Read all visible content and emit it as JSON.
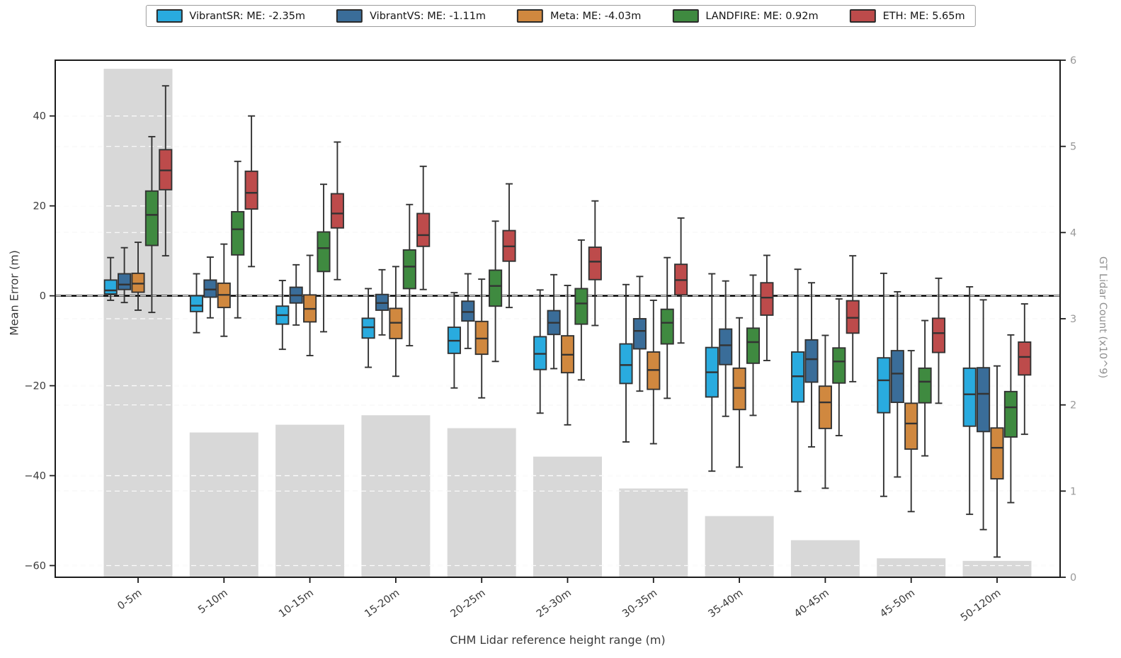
{
  "chart_data": {
    "type": "boxplot+bar",
    "title": "",
    "xlabel": "CHM Lidar reference height range (m)",
    "ylabel_left": "Mean Error (m)",
    "ylabel_right": "GT Lidar Count (x10^9)",
    "categories": [
      "0-5m",
      "5-10m",
      "10-15m",
      "15-20m",
      "20-25m",
      "25-30m",
      "30-35m",
      "35-40m",
      "40-45m",
      "45-50m",
      "50-120m"
    ],
    "ylim_left": [
      -62.6,
      52.4
    ],
    "yticks_left": [
      -60,
      -40,
      -20,
      0,
      20,
      40
    ],
    "ylim_right": [
      0,
      6
    ],
    "yticks_right": [
      0,
      1,
      2,
      3,
      4,
      5,
      6
    ],
    "grid": "dashed, both axes",
    "legend_position": "top-center",
    "zero_line": 0,
    "series": [
      {
        "name": "VibrantSR",
        "legend_label": "VibrantSR: ME: -2.35m",
        "color": "#29abdf",
        "boxes": [
          [
            -1.0,
            0.4,
            1.2,
            3.5,
            8.5
          ],
          [
            -8.2,
            -3.5,
            -2.2,
            0.0,
            4.9
          ],
          [
            -11.9,
            -6.3,
            -4.3,
            -2.3,
            3.4
          ],
          [
            -15.9,
            -9.4,
            -7.0,
            -5.0,
            1.6
          ],
          [
            -20.5,
            -12.8,
            -10.0,
            -7.0,
            0.7
          ],
          [
            -26.1,
            -16.4,
            -12.9,
            -9.1,
            1.3
          ],
          [
            -32.5,
            -19.5,
            -15.4,
            -10.7,
            2.5
          ],
          [
            -39.0,
            -22.5,
            -17.0,
            -11.5,
            4.9
          ],
          [
            -43.5,
            -23.6,
            -17.9,
            -12.5,
            5.9
          ],
          [
            -44.6,
            -26.0,
            -18.8,
            -13.8,
            5.0
          ],
          [
            -48.6,
            -29.0,
            -21.9,
            -16.1,
            2.0
          ]
        ]
      },
      {
        "name": "VibrantVS",
        "legend_label": "VibrantVS: ME: -1.11m",
        "color": "#3a6d99",
        "boxes": [
          [
            -1.5,
            1.4,
            2.5,
            4.9,
            10.7
          ],
          [
            -4.9,
            -0.3,
            1.4,
            3.5,
            8.6
          ],
          [
            -6.5,
            -1.6,
            0.1,
            1.9,
            6.9
          ],
          [
            -8.7,
            -3.2,
            -1.6,
            0.3,
            5.8
          ],
          [
            -11.7,
            -5.6,
            -3.6,
            -1.2,
            4.9
          ],
          [
            -16.2,
            -8.6,
            -6.0,
            -3.3,
            4.7
          ],
          [
            -21.2,
            -11.8,
            -7.8,
            -5.1,
            4.3
          ],
          [
            -26.8,
            -15.3,
            -11.0,
            -7.4,
            3.3
          ],
          [
            -33.6,
            -19.2,
            -14.1,
            -9.8,
            2.9
          ],
          [
            -40.3,
            -23.7,
            -17.3,
            -12.2,
            0.9
          ],
          [
            -52.0,
            -30.2,
            -21.8,
            -16.0,
            -0.9
          ]
        ]
      },
      {
        "name": "Meta",
        "legend_label": "Meta: ME: -4.03m",
        "color": "#d0883f",
        "boxes": [
          [
            -3.2,
            0.8,
            2.7,
            5.0,
            11.9
          ],
          [
            -9.0,
            -2.6,
            0.2,
            2.8,
            11.5
          ],
          [
            -13.3,
            -5.8,
            -2.9,
            0.2,
            9.0
          ],
          [
            -17.9,
            -9.5,
            -6.0,
            -2.8,
            6.5
          ],
          [
            -22.7,
            -13.0,
            -9.5,
            -5.7,
            3.7
          ],
          [
            -28.7,
            -17.1,
            -13.1,
            -8.9,
            2.3
          ],
          [
            -32.9,
            -20.8,
            -16.5,
            -12.5,
            -1.0
          ],
          [
            -38.1,
            -25.3,
            -20.5,
            -16.1,
            -4.9
          ],
          [
            -42.8,
            -29.5,
            -23.7,
            -20.1,
            -8.8
          ],
          [
            -48.0,
            -34.1,
            -28.4,
            -23.9,
            -12.2
          ],
          [
            -58.1,
            -40.7,
            -33.8,
            -29.4,
            -15.6
          ]
        ]
      },
      {
        "name": "LANDFIRE",
        "legend_label": "LANDFIRE: ME: 0.92m",
        "color": "#3f8a40",
        "boxes": [
          [
            -3.7,
            11.2,
            18.0,
            23.3,
            35.4
          ],
          [
            -4.9,
            9.1,
            14.8,
            18.7,
            29.9
          ],
          [
            -8.0,
            5.4,
            10.6,
            14.2,
            24.8
          ],
          [
            -11.1,
            1.6,
            6.5,
            10.2,
            20.3
          ],
          [
            -14.6,
            -2.3,
            2.2,
            5.7,
            16.6
          ],
          [
            -18.7,
            -6.3,
            -1.7,
            1.6,
            12.4
          ],
          [
            -22.8,
            -10.7,
            -6.0,
            -3.0,
            8.5
          ],
          [
            -26.6,
            -15.0,
            -10.3,
            -7.2,
            4.6
          ],
          [
            -31.1,
            -19.4,
            -14.6,
            -11.6,
            -0.7
          ],
          [
            -35.6,
            -23.8,
            -19.1,
            -16.1,
            -5.5
          ],
          [
            -46.0,
            -31.4,
            -24.8,
            -21.3,
            -8.7
          ]
        ]
      },
      {
        "name": "ETH",
        "legend_label": "ETH: ME: 5.65m",
        "color": "#bd4b4b",
        "boxes": [
          [
            8.9,
            23.6,
            27.9,
            32.5,
            46.7
          ],
          [
            6.5,
            19.3,
            22.9,
            27.7,
            40.0
          ],
          [
            3.6,
            15.1,
            18.3,
            22.7,
            34.2
          ],
          [
            1.4,
            11.0,
            13.5,
            18.3,
            28.8
          ],
          [
            -2.6,
            7.7,
            11.0,
            14.5,
            24.9
          ],
          [
            -6.6,
            3.6,
            7.6,
            10.8,
            21.1
          ],
          [
            -10.5,
            0.2,
            3.5,
            7.0,
            17.3
          ],
          [
            -14.4,
            -4.3,
            -0.4,
            2.9,
            9.0
          ],
          [
            -19.1,
            -8.3,
            -4.9,
            -1.1,
            8.9
          ],
          [
            -23.9,
            -12.6,
            -8.3,
            -5.0,
            3.9
          ],
          [
            -30.8,
            -17.6,
            -13.6,
            -10.3,
            -1.8
          ]
        ]
      }
    ],
    "bars": {
      "name": "GT Lidar Count",
      "axis": "right",
      "color": "#d8d8d8",
      "values": [
        5.9,
        1.68,
        1.77,
        1.88,
        1.73,
        1.4,
        1.03,
        0.71,
        0.43,
        0.22,
        0.19
      ]
    },
    "colors": {
      "box_edge": "#333333",
      "bar_fill": "#d8d8d8",
      "grid": "#dcdcdc",
      "spine": "#1c1c1c",
      "tick_label_left": "#3a3a3a",
      "tick_label_right": "#999999",
      "zero_line": "#000000"
    }
  }
}
